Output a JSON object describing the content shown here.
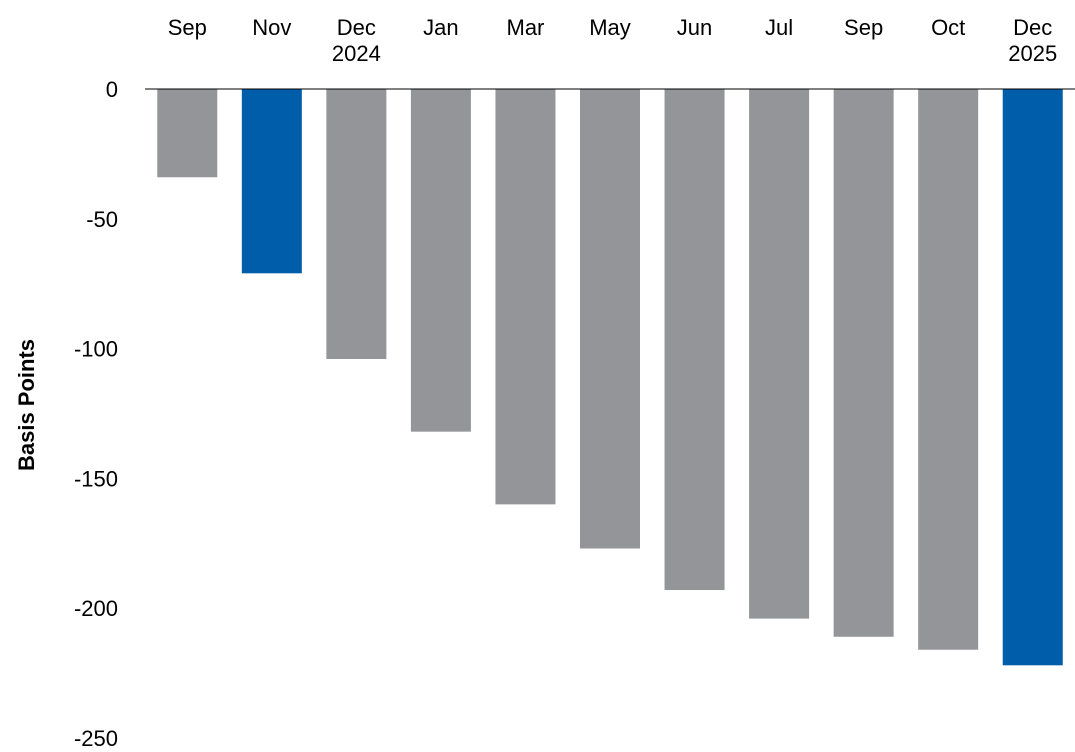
{
  "chart_data": {
    "type": "bar",
    "title": "",
    "xlabel": "",
    "ylabel": "Basis Points",
    "ylim": [
      -250,
      0
    ],
    "yticks": [
      0,
      -50,
      -100,
      -150,
      -200,
      -250
    ],
    "grid": false,
    "x_axis_position": "top",
    "categories": [
      [
        "Sep"
      ],
      [
        "Nov"
      ],
      [
        "Dec",
        "2024"
      ],
      [
        "Jan"
      ],
      [
        "Mar"
      ],
      [
        "May"
      ],
      [
        "Jun"
      ],
      [
        "Jul"
      ],
      [
        "Sep"
      ],
      [
        "Oct"
      ],
      [
        "Dec",
        "2025"
      ]
    ],
    "values": [
      -34,
      -71,
      -104,
      -132,
      -160,
      -177,
      -193,
      -204,
      -211,
      -216,
      -222
    ],
    "highlighted": [
      false,
      true,
      false,
      false,
      false,
      false,
      false,
      false,
      false,
      false,
      true
    ],
    "colors": {
      "default": "#939598",
      "highlight": "#005DAA",
      "axis": "#000000"
    }
  }
}
